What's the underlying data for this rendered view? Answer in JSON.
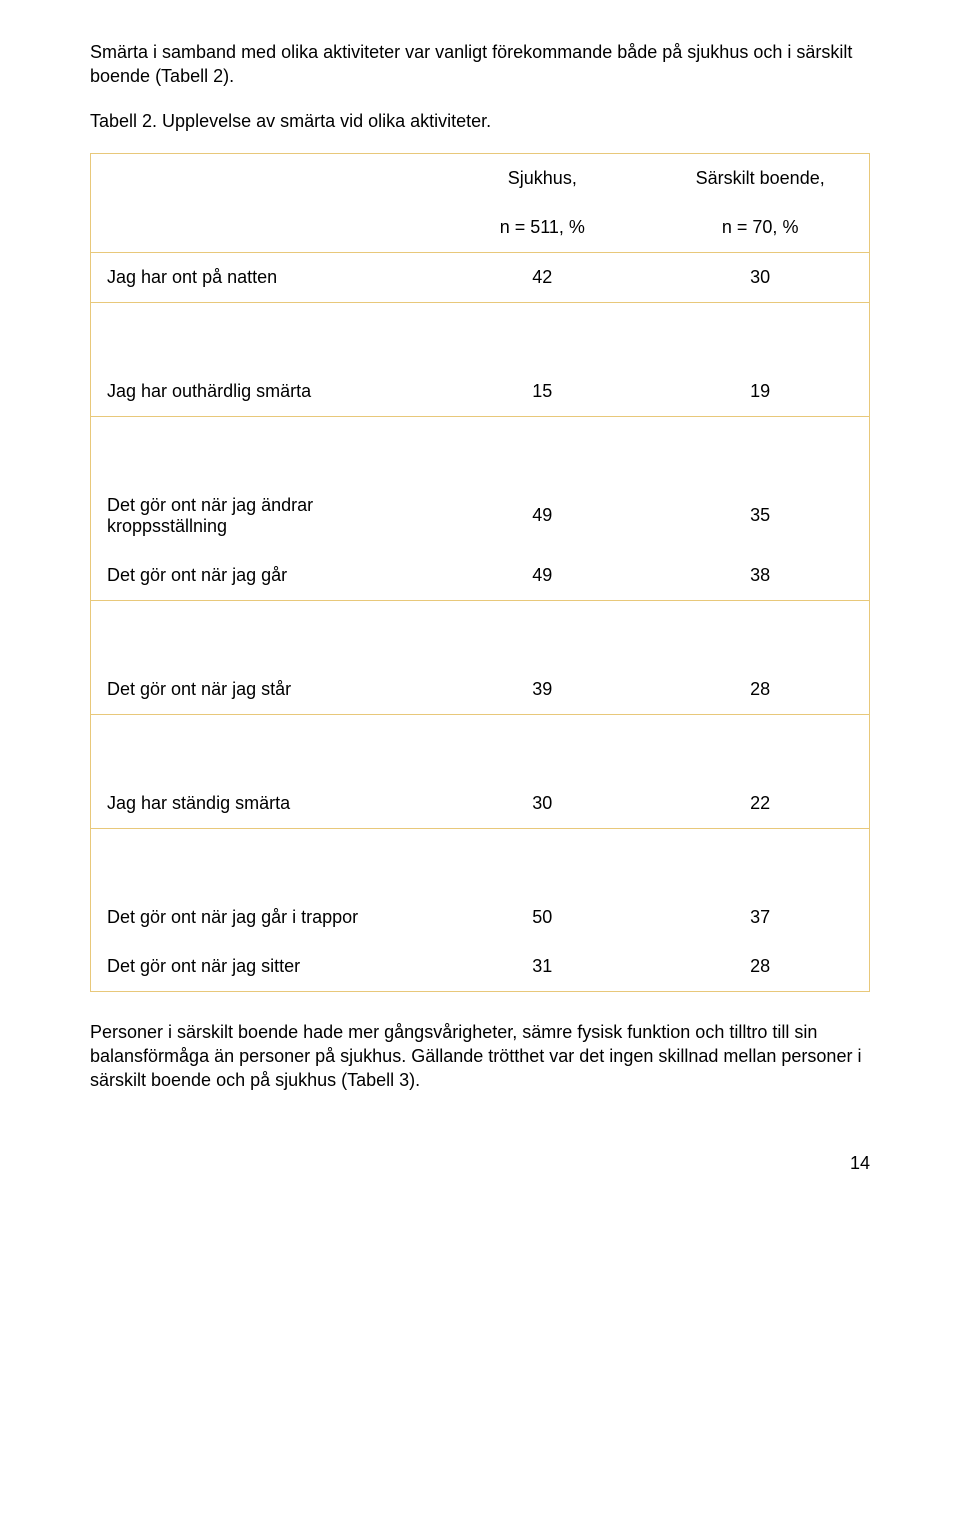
{
  "intro_para": "Smärta i samband med olika aktiviteter var vanligt förekommande både på sjukhus och i särskilt boende (Tabell 2).",
  "table_caption": "Tabell 2. Upplevelse av smärta vid olika aktiviteter.",
  "table": {
    "border_color": "#e8c87a",
    "header": {
      "col1_line1": "Sjukhus,",
      "col1_line2": "n = 511, %",
      "col2_line1": "Särskilt boende,",
      "col2_line2": "n = 70, %"
    },
    "groups": [
      {
        "rows": [
          {
            "label": "Jag har ont på natten",
            "v1": "42",
            "v2": "30"
          }
        ]
      },
      {
        "rows": [
          {
            "label": "Jag har outhärdlig smärta",
            "v1": "15",
            "v2": "19"
          }
        ]
      },
      {
        "rows": [
          {
            "label": "Det gör ont när jag ändrar kroppsställning",
            "v1": "49",
            "v2": "35"
          },
          {
            "label": "Det gör ont när jag går",
            "v1": "49",
            "v2": "38"
          }
        ]
      },
      {
        "rows": [
          {
            "label": "Det gör ont när jag står",
            "v1": "39",
            "v2": "28"
          }
        ]
      },
      {
        "rows": [
          {
            "label": "Jag har ständig smärta",
            "v1": "30",
            "v2": "22"
          }
        ]
      },
      {
        "rows": [
          {
            "label": "Det gör ont när jag går i trappor",
            "v1": "50",
            "v2": "37"
          },
          {
            "label": "Det gör ont när jag sitter",
            "v1": "31",
            "v2": "28"
          }
        ]
      }
    ]
  },
  "closing_para": "Personer i särskilt boende hade mer gångsvårigheter, sämre fysisk funktion och tilltro till sin balansförmåga än personer på sjukhus. Gällande trötthet var det ingen skillnad mellan personer i särskilt boende och på sjukhus (Tabell 3).",
  "page_number": "14"
}
